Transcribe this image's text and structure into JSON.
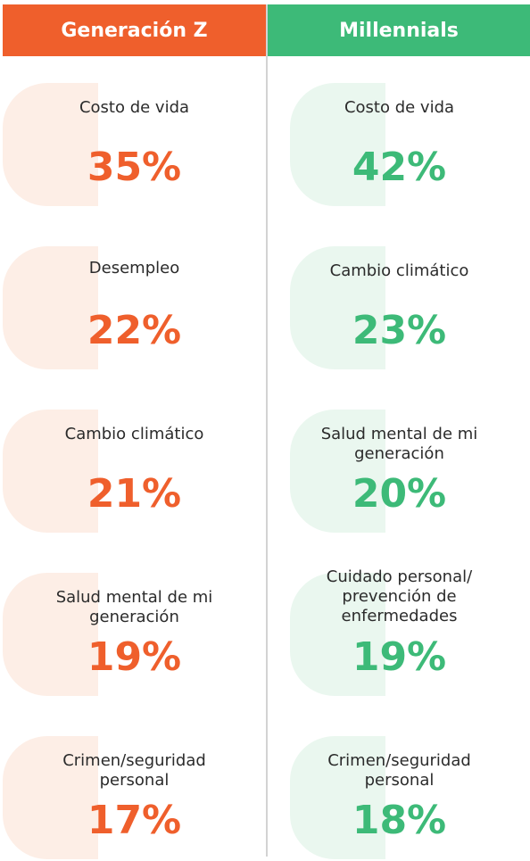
{
  "colors": {
    "genz": "#ef5f2c",
    "millennials": "#3dba78",
    "genz_tint": "#fdeee6",
    "millennials_tint": "#eaf7ef",
    "divider": "#d3d3d3"
  },
  "genz": {
    "title": "Generación Z",
    "items": [
      {
        "label": "Costo de vida",
        "value": "35%"
      },
      {
        "label": "Desempleo",
        "value": "22%"
      },
      {
        "label": "Cambio climático",
        "value": "21%"
      },
      {
        "label": "Salud mental de mi generación",
        "value": "19%"
      },
      {
        "label": "Crimen/seguridad personal",
        "value": "17%"
      }
    ]
  },
  "millennials": {
    "title": "Millennials",
    "items": [
      {
        "label": "Costo de vida",
        "value": "42%"
      },
      {
        "label": "Cambio climático",
        "value": "23%"
      },
      {
        "label": "Salud mental de mi generación",
        "value": "20%"
      },
      {
        "label": "Cuidado personal/ prevención de enfermedades",
        "value": "19%"
      },
      {
        "label": "Crimen/seguridad personal",
        "value": "18%"
      }
    ]
  }
}
